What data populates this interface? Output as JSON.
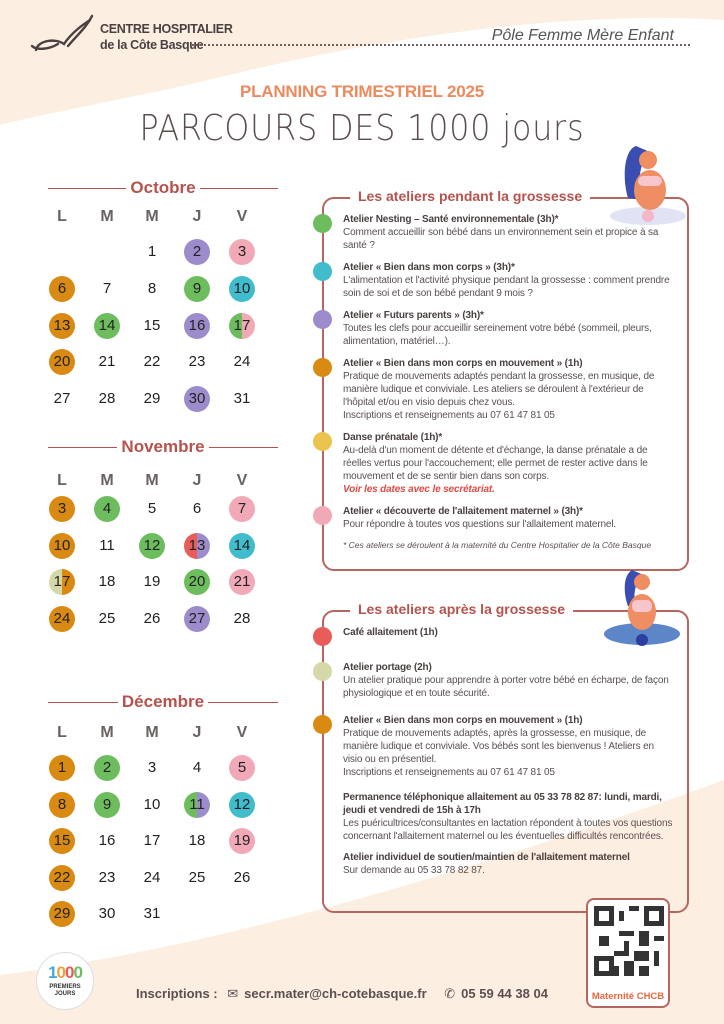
{
  "header": {
    "org_line1": "CENTRE HOSPITALIER",
    "org_line2": "de la Côte Basque",
    "pole": "Pôle Femme Mère Enfant"
  },
  "subtitle": "PLANNING TRIMESTRIEL 2025",
  "title": "PARCOURS DES 1000 jours",
  "colors": {
    "green": "#6dbd5e",
    "teal": "#40bccd",
    "purple": "#9d8ccb",
    "orange": "#d98a12",
    "yellow": "#eac44e",
    "pink": "#f2a9b7",
    "red": "#e85d5a",
    "olive": "#d4d9a7",
    "accent": "#b5534c"
  },
  "weekdays": [
    "L",
    "M",
    "M",
    "J",
    "V"
  ],
  "months": [
    {
      "name": "Octobre",
      "weeks": [
        [
          null,
          null,
          {
            "d": "1"
          },
          {
            "d": "2",
            "c": [
              "purple"
            ]
          },
          {
            "d": "3",
            "c": [
              "pink"
            ]
          }
        ],
        [
          {
            "d": "6",
            "c": [
              "orange"
            ]
          },
          {
            "d": "7"
          },
          {
            "d": "8"
          },
          {
            "d": "9",
            "c": [
              "green"
            ]
          },
          {
            "d": "10",
            "c": [
              "teal"
            ]
          }
        ],
        [
          {
            "d": "13",
            "c": [
              "orange"
            ]
          },
          {
            "d": "14",
            "c": [
              "green"
            ]
          },
          {
            "d": "15"
          },
          {
            "d": "16",
            "c": [
              "purple"
            ]
          },
          {
            "d": "17",
            "c": [
              "green",
              "pink"
            ]
          }
        ],
        [
          {
            "d": "20",
            "c": [
              "orange"
            ]
          },
          {
            "d": "21"
          },
          {
            "d": "22"
          },
          {
            "d": "23"
          },
          {
            "d": "24"
          }
        ],
        [
          {
            "d": "27"
          },
          {
            "d": "28"
          },
          {
            "d": "29"
          },
          {
            "d": "30",
            "c": [
              "purple"
            ]
          },
          {
            "d": "31"
          }
        ]
      ]
    },
    {
      "name": "Novembre",
      "weeks": [
        [
          {
            "d": "3",
            "c": [
              "orange"
            ]
          },
          {
            "d": "4",
            "c": [
              "green"
            ]
          },
          {
            "d": "5"
          },
          {
            "d": "6"
          },
          {
            "d": "7",
            "c": [
              "pink"
            ]
          }
        ],
        [
          {
            "d": "10",
            "c": [
              "orange"
            ]
          },
          {
            "d": "11"
          },
          {
            "d": "12",
            "c": [
              "green"
            ]
          },
          {
            "d": "13",
            "c": [
              "red",
              "purple"
            ]
          },
          {
            "d": "14",
            "c": [
              "teal"
            ]
          }
        ],
        [
          {
            "d": "17",
            "c": [
              "olive",
              "orange"
            ]
          },
          {
            "d": "18"
          },
          {
            "d": "19"
          },
          {
            "d": "20",
            "c": [
              "green"
            ]
          },
          {
            "d": "21",
            "c": [
              "pink"
            ]
          }
        ],
        [
          {
            "d": "24",
            "c": [
              "orange"
            ]
          },
          {
            "d": "25"
          },
          {
            "d": "26"
          },
          {
            "d": "27",
            "c": [
              "purple"
            ]
          },
          {
            "d": "28"
          }
        ]
      ]
    },
    {
      "name": "Décembre",
      "weeks": [
        [
          {
            "d": "1",
            "c": [
              "orange"
            ]
          },
          {
            "d": "2",
            "c": [
              "green"
            ]
          },
          {
            "d": "3"
          },
          {
            "d": "4"
          },
          {
            "d": "5",
            "c": [
              "pink"
            ]
          }
        ],
        [
          {
            "d": "8",
            "c": [
              "orange"
            ]
          },
          {
            "d": "9",
            "c": [
              "green"
            ]
          },
          {
            "d": "10"
          },
          {
            "d": "11",
            "c": [
              "green",
              "purple"
            ]
          },
          {
            "d": "12",
            "c": [
              "teal"
            ]
          }
        ],
        [
          {
            "d": "15",
            "c": [
              "orange"
            ]
          },
          {
            "d": "16"
          },
          {
            "d": "17"
          },
          {
            "d": "18"
          },
          {
            "d": "19",
            "c": [
              "pink"
            ]
          }
        ],
        [
          {
            "d": "22",
            "c": [
              "orange"
            ]
          },
          {
            "d": "23"
          },
          {
            "d": "24"
          },
          {
            "d": "25"
          },
          {
            "d": "26"
          }
        ],
        [
          {
            "d": "29",
            "c": [
              "orange"
            ]
          },
          {
            "d": "30"
          },
          {
            "d": "31"
          },
          null,
          null
        ]
      ]
    }
  ],
  "during": {
    "title": "Les ateliers pendant la grossesse",
    "items": [
      {
        "color": "green",
        "title": "Atelier Nesting – Santé environnementale (3h)*",
        "body": "Comment accueillir son bébé dans un environnement sein et propice à sa santé ?"
      },
      {
        "color": "teal",
        "title": "Atelier « Bien dans mon corps » (3h)*",
        "body": "L'alimentation et l'activité physique pendant la grossesse : comment prendre soin de soi et de son bébé pendant 9 mois ?"
      },
      {
        "color": "purple",
        "title": "Atelier « Futurs  parents » (3h)*",
        "body": "Toutes les clefs pour accueillir sereinement votre bébé (sommeil, pleurs, alimentation, matériel…)."
      },
      {
        "color": "orange",
        "title": "Atelier « Bien dans mon corps en mouvement » (1h)",
        "body": "Pratique de mouvements adaptés pendant la grossesse, en musique, de manière ludique et conviviale. Les ateliers se déroulent à l'extérieur de l'hôpital et/ou en visio depuis chez vous.",
        "body2": "Inscriptions et renseignements au 07 61 47 81 05"
      },
      {
        "color": "yellow",
        "title": "Danse prénatale (1h)*",
        "body": "Au-delà d'un moment de détente et d'échange, la danse prénatale a de réelles vertus pour l'accouchement; elle permet de rester active dans le mouvement et de se sentir bien dans son corps.",
        "note": "Voir les dates avec le secrétariat."
      },
      {
        "color": "pink",
        "title": "Atelier « découverte de l'allaitement maternel » (3h)*",
        "body": "Pour répondre à toutes vos questions sur l'allaitement maternel."
      }
    ],
    "footnote": "* Ces ateliers se déroulent à la maternité du Centre Hospitalier de la Côte Basque"
  },
  "after": {
    "title": "Les ateliers après la grossesse",
    "items": [
      {
        "color": "red",
        "title": "Café allaitement (1h)"
      },
      {
        "color": "olive",
        "title": "Atelier portage (2h)",
        "body": "Un atelier pratique pour apprendre à porter votre bébé en écharpe, de façon physiologique et en toute sécurité."
      },
      {
        "color": "orange",
        "title": "Atelier « Bien dans mon corps en mouvement » (1h)",
        "body": "Pratique de mouvements adaptés, après la grossesse, en musique, de manière ludique et conviviale. Vos bébés sont les bienvenus ! Ateliers en visio ou en présentiel.",
        "body2": "Inscriptions et renseignements au 07 61 47 81 05"
      },
      {
        "title": "Permanence téléphonique allaitement au 05 33 78 82 87: lundi, mardi, jeudi et vendredi de 15h à 17h",
        "body": "Les puéricultrices/consultantes en lactation répondent à toutes vos questions concernant l'allaitement maternel ou les éventuelles difficultés rencontrées."
      },
      {
        "title": "Atelier individuel de soutien/maintien de l'allaitement maternel",
        "body": "Sur demande au 05 33 78 82 87."
      }
    ]
  },
  "qr": {
    "label": "Maternité CHCB"
  },
  "badge": {
    "number": "1000",
    "text": "PREMIERS JOURS"
  },
  "footer": {
    "label": "Inscriptions :",
    "email": "secr.mater@ch-cotebasque.fr",
    "phone": "05 59 44 38 04"
  }
}
